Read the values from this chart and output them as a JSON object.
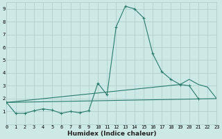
{
  "xlabel": "Humidex (Indice chaleur)",
  "series_main": {
    "x": [
      0,
      1,
      2,
      3,
      4,
      5,
      6,
      7,
      8,
      9,
      10,
      11,
      12,
      13,
      14,
      15,
      16,
      17,
      18,
      19,
      20,
      21
    ],
    "y": [
      1.7,
      0.85,
      0.85,
      1.05,
      1.2,
      1.1,
      0.85,
      1.0,
      0.9,
      1.05,
      3.2,
      2.3,
      7.6,
      9.2,
      9.0,
      8.3,
      5.5,
      4.1,
      3.5,
      3.1,
      3.0,
      2.0
    ]
  },
  "series_low": {
    "x": [
      0,
      23
    ],
    "y": [
      1.7,
      2.0
    ]
  },
  "series_mid": {
    "x": [
      0,
      19,
      20,
      21,
      22,
      23
    ],
    "y": [
      1.7,
      3.1,
      3.5,
      3.1,
      2.9,
      2.0
    ]
  },
  "color": "#2a7a6c",
  "bg_color": "#cce9e5",
  "grid_color": "#aaccca",
  "xlim": [
    0,
    23
  ],
  "ylim": [
    0,
    9.5
  ],
  "yticks": [
    1,
    2,
    3,
    4,
    5,
    6,
    7,
    8,
    9
  ],
  "xticks": [
    0,
    1,
    2,
    3,
    4,
    5,
    6,
    7,
    8,
    9,
    10,
    11,
    12,
    13,
    14,
    15,
    16,
    17,
    18,
    19,
    20,
    21,
    22,
    23
  ],
  "marker": "+",
  "markersize": 3.5,
  "linewidth": 0.8,
  "tick_fontsize": 5.0,
  "xlabel_fontsize": 6.5
}
